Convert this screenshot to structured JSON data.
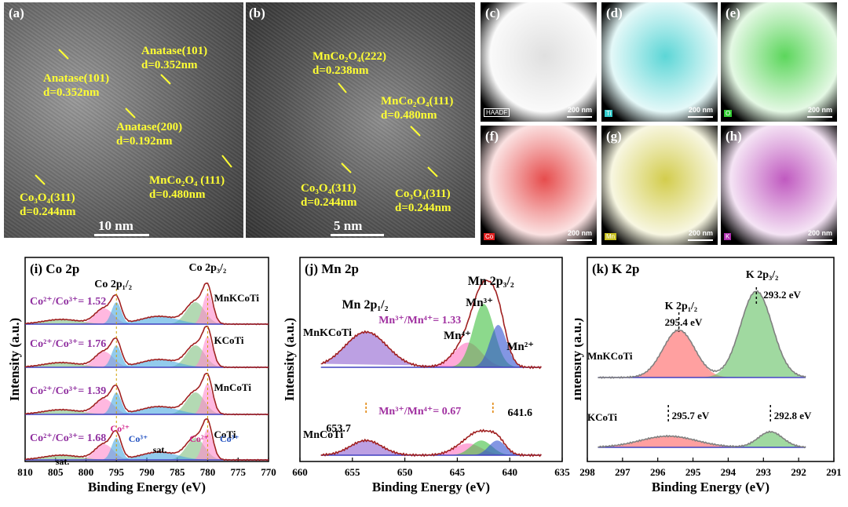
{
  "tem": {
    "a": {
      "label": "(a)",
      "scale": "10 nm",
      "annotations": [
        "Anatase(101)",
        "d=0.352nm",
        "Anatase(101)",
        "d=0.352nm",
        "Anatase(200)",
        "d=0.192nm",
        "Co₃O₄(311)",
        "d=0.244nm",
        "MnCo₂O₄ (111)",
        "d=0.480nm"
      ]
    },
    "b": {
      "label": "(b)",
      "scale": "5 nm",
      "annotations": [
        "MnCo₂O₄(222)",
        "d=0.238nm",
        "MnCo₂O₄(111)",
        "d=0.480nm",
        "Co₃O₄(311)",
        "d=0.244nm",
        "Co₃O₄(311)",
        "d=0.244nm"
      ]
    }
  },
  "maps": [
    {
      "label": "(c)",
      "element": "HAADF",
      "color": "#d8d8d8",
      "scale": "200 nm"
    },
    {
      "label": "(d)",
      "element": "Ti",
      "color": "#33cccc",
      "scale": "200 nm"
    },
    {
      "label": "(e)",
      "element": "O",
      "color": "#33cc33",
      "scale": "200 nm"
    },
    {
      "label": "(f)",
      "element": "Co",
      "color": "#e02020",
      "scale": "200 nm"
    },
    {
      "label": "(g)",
      "element": "Mn",
      "color": "#c8c020",
      "scale": "200 nm"
    },
    {
      "label": "(h)",
      "element": "K",
      "color": "#b030b0",
      "scale": "200 nm"
    }
  ],
  "chart_data": [
    {
      "type": "line",
      "title": "(i) Co 2p",
      "xlabel": "Binding Energy (eV)",
      "ylabel": "Intensity (a.u.)",
      "xlim": [
        810,
        770
      ],
      "xticks": [
        810,
        805,
        800,
        795,
        790,
        785,
        780,
        775,
        770
      ],
      "peak_labels": [
        "Co 2p₁/₂",
        "Co 2p₃/₂"
      ],
      "samples": [
        {
          "name": "MnKCoTi",
          "ratio": "Co²⁺/Co³⁺= 1.52"
        },
        {
          "name": "KCoTi",
          "ratio": "Co²⁺/Co³⁺= 1.76"
        },
        {
          "name": "MnCoTi",
          "ratio": "Co²⁺/Co³⁺= 1.39"
        },
        {
          "name": "CoTi",
          "ratio": "Co²⁺/Co³⁺= 1.68"
        }
      ],
      "components": [
        "Co²⁺",
        "Co³⁺",
        "Co²⁺",
        "Co³⁺",
        "sat.",
        "sat."
      ],
      "peaks_ev": {
        "2p1_2": 795,
        "2p3_2": 780
      }
    },
    {
      "type": "line",
      "title": "(j) Mn 2p",
      "xlabel": "Binding Energy (eV)",
      "ylabel": "Intensity (a.u.)",
      "xlim": [
        660,
        635
      ],
      "xticks": [
        660,
        655,
        650,
        645,
        640,
        635
      ],
      "peak_labels": [
        "Mn 2p₁/₂",
        "Mn 2p₃/₂"
      ],
      "samples": [
        {
          "name": "MnKCoTi",
          "ratio": "Mn³⁺/Mn⁴⁺= 1.33"
        },
        {
          "name": "MnCoTi",
          "ratio": "Mn³⁺/Mn⁴⁺= 0.67"
        }
      ],
      "components": [
        "Mn³⁺",
        "Mn⁴⁺",
        "Mn²⁺"
      ],
      "values": [
        "641.6",
        "653.7"
      ]
    },
    {
      "type": "line",
      "title": "(k) K 2p",
      "xlabel": "Binding Energy (eV)",
      "ylabel": "Intensity (a.u.)",
      "xlim": [
        298,
        291
      ],
      "xticks": [
        298,
        297,
        296,
        295,
        294,
        293,
        292,
        291
      ],
      "peak_labels": [
        "K 2p₃/₂",
        "K 2p₁/₂"
      ],
      "samples": [
        {
          "name": "MnKCoTi",
          "values": [
            "295.4 eV",
            "293.2 eV"
          ]
        },
        {
          "name": "KCoTi",
          "values": [
            "295.7 eV",
            "292.8 eV"
          ]
        }
      ]
    }
  ]
}
